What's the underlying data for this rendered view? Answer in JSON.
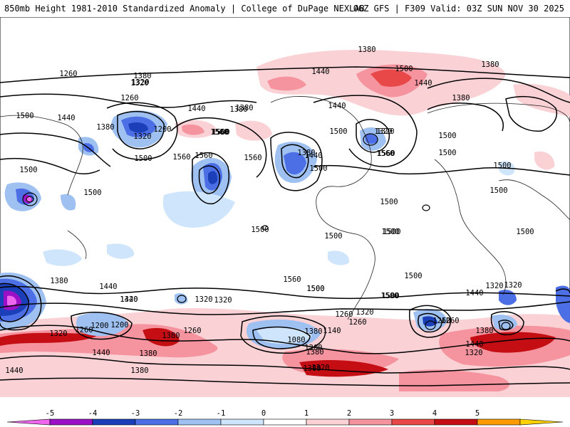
{
  "header": {
    "title": "850mb Height 1981-2010 Standardized Anomaly | College of DuPage NEXLAB",
    "run_info": "06Z GFS | F309 Valid: 03Z SUN NOV 30 2025"
  },
  "map": {
    "contour_labels": [
      "1260",
      "1380",
      "1320",
      "1380",
      "1380",
      "1440",
      "1500",
      "1560",
      "1380",
      "1560",
      "1260",
      "1320",
      "1200",
      "1440",
      "1380",
      "1320",
      "1500",
      "1560",
      "1560",
      "1500",
      "1440",
      "1380",
      "1500",
      "1380",
      "1320",
      "1440",
      "1500",
      "1500",
      "1440",
      "1560",
      "1380",
      "1500",
      "1560",
      "1500",
      "1500",
      "1500",
      "1500",
      "1500",
      "1500",
      "1500",
      "1500",
      "1500",
      "1500",
      "1500",
      "1500",
      "1500",
      "1380",
      "1320",
      "1500",
      "1440",
      "1440",
      "1320",
      "1440",
      "1320",
      "1500",
      "1560",
      "1500",
      "1440",
      "1320",
      "1320",
      "1200",
      "1260",
      "1320",
      "1380",
      "1260",
      "1200",
      "1140",
      "1080",
      "1260",
      "1200",
      "1260",
      "1320",
      "1380",
      "1440",
      "1380",
      "1440",
      "1380",
      "1320",
      "1320",
      "1380",
      "1380",
      "1440",
      "1260",
      "1320",
      "1380",
      "1500",
      "1260"
    ]
  },
  "colorbar": {
    "ticks": [
      "-5",
      "-4",
      "-3",
      "-2",
      "-1",
      "0",
      "1",
      "2",
      "3",
      "4",
      "5"
    ],
    "colors": [
      "#ee66ee",
      "#9a10c6",
      "#1a3fb8",
      "#4d6fe6",
      "#9ec1f2",
      "#cfe5fb",
      "#ffffff",
      "#fad2d6",
      "#f5949e",
      "#e84848",
      "#c40e14",
      "#ff9a00",
      "#ffd100"
    ]
  }
}
